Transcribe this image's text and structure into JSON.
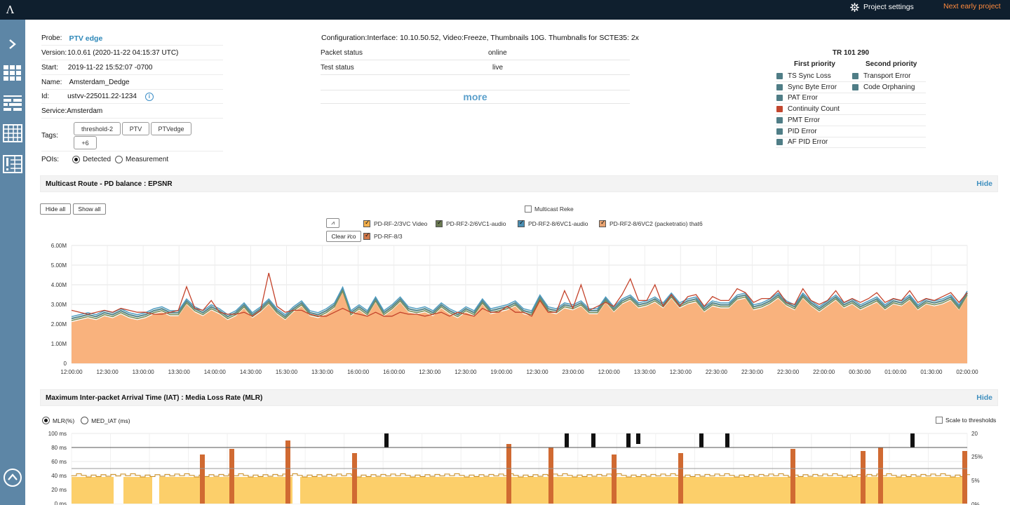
{
  "topbar": {
    "logo": "Λ",
    "project_settings": "Project settings",
    "next_early_project": "Next early project"
  },
  "sidebar": {
    "icons": [
      "chevron-right-icon",
      "grid-icon",
      "list-icon",
      "table-icon",
      "alert-list-icon",
      "collapse-up-icon"
    ]
  },
  "info": {
    "probe_label": "Probe:",
    "probe_value": "PTV edge",
    "version_label": "Version:",
    "version_value": "10.0.61 (2020-11-22 04:15:37 UTC)",
    "start_label": "Start:",
    "start_value": "2019-11-22 15:52:07 -0700",
    "name_label": "Name:",
    "name_value": "Amsterdam_Dedge",
    "id_label": "Id:",
    "id_value": "ustvv-225011.22-1234",
    "service_label": "Service:",
    "service_value": "Amsterdam",
    "tags_label": "Tags:",
    "tags": [
      "threshold-2",
      "PTV",
      "PTVedge",
      "+6"
    ],
    "pois_label": "POIs:",
    "pois_detected": "Detected",
    "pois_measurement": "Measurement"
  },
  "config": {
    "title": "Configuration:Interface: 10.10.50.52, Video:Freeze, Thumbnails 10G. Thumbnalls for SCTE35: 2x",
    "packet_status_label": "Packet status",
    "packet_status_value": "online",
    "test_status_label": "Test status",
    "test_status_value": "live",
    "more": "more"
  },
  "tr101290": {
    "title": "TR 101 290",
    "first_priority": "First priority",
    "second_priority": "Second priority",
    "first_items": [
      {
        "label": "TS Sync Loss",
        "color": "#4f7d86"
      },
      {
        "label": "Sync Byte Error",
        "color": "#4f7d86"
      },
      {
        "label": "PAT Error",
        "color": "#4f7d86"
      },
      {
        "label": "Continuity Count",
        "color": "#c2472f"
      },
      {
        "label": "PMT Error",
        "color": "#4f7d86"
      },
      {
        "label": "PID Error",
        "color": "#4f7d86"
      },
      {
        "label": "AF PID Error",
        "color": "#4f7d86"
      }
    ],
    "second_items": [
      {
        "label": "Transport Error",
        "color": "#4f7d86"
      },
      {
        "label": "Code Orphaning",
        "color": "#4f7d86"
      }
    ]
  },
  "section1": {
    "title": "Multicast Route - PD balance : EPSNR",
    "hide": "Hide",
    "hide_all": "Hide all",
    "show_all": "Show all",
    "multicast_reke": "Multicast Reke",
    "zoom_btn": "⩘",
    "clear_btn": "Clear i∕co",
    "legend": [
      {
        "name": "PD-RF-2/3VC Video",
        "color": "#f5b04c"
      },
      {
        "name": "PD-RF2-2/6VC1-audio",
        "color": "#6b7a52"
      },
      {
        "name": "PD-RF2-8/6VC1-audio",
        "color": "#4b8fb3"
      },
      {
        "name": "PD-RF2-8/6VC2 (packetratio) that6",
        "color": "#e8a371"
      },
      {
        "name": "PD-RF-8/3",
        "color": "#d2784a"
      }
    ]
  },
  "chart_data": [
    {
      "type": "area",
      "title": "Multicast Route - PD balance : EPSNR",
      "y_tick_labels": [
        "0",
        "1.00M",
        "2.00M",
        "3.00M",
        "4.00M",
        "5.00M",
        "6.00M"
      ],
      "ylim": [
        0,
        6000000
      ],
      "x_tick_labels": [
        "12:00:00",
        "12:30:00",
        "13:00:00",
        "13:30:00",
        "14:00:00",
        "14:30:00",
        "15:30:00",
        "13:30:00",
        "16:00:00",
        "16:00:00",
        "12:30:00",
        "12:30:00",
        "19:00:00",
        "12:30:00",
        "23:00:00",
        "12:00:00",
        "13:30:00",
        "12:30:00",
        "22:30:00",
        "22:30:00",
        "22:30:00",
        "22:00:00",
        "00:30:00",
        "01:00:00",
        "01:30:00",
        "02:00:00"
      ],
      "grid": true,
      "series": [
        {
          "name": "PD-RF-2/3VC Video",
          "values": [
            2.1,
            2.2,
            2.3,
            2.2,
            2.4,
            2.3,
            2.5,
            2.3,
            2.2,
            2.3,
            2.5,
            2.6,
            2.4,
            2.4,
            3.0,
            2.6,
            2.4,
            2.7,
            2.5,
            2.2,
            2.4,
            2.8,
            2.3,
            2.6,
            3.0,
            2.5,
            2.2,
            2.6,
            2.9,
            2.4,
            2.3,
            2.5,
            2.8,
            3.6,
            2.4,
            2.7,
            2.4,
            3.1,
            2.4,
            2.7,
            3.1,
            2.6,
            2.5,
            2.6,
            2.4,
            2.8,
            2.5,
            2.3,
            2.6,
            2.4,
            3.0,
            2.5,
            2.6,
            2.7,
            2.9,
            2.5,
            2.4,
            3.2,
            2.6,
            2.5,
            2.8,
            2.7,
            2.9,
            2.5,
            2.5,
            3.1,
            2.6,
            3.0,
            3.2,
            2.8,
            2.9,
            3.1,
            2.8,
            3.3,
            2.8,
            3.0,
            3.1,
            2.6,
            2.9,
            2.8,
            2.8,
            3.2,
            3.3,
            2.7,
            2.8,
            3.0,
            3.3,
            2.9,
            2.7,
            3.3,
            2.9,
            2.6,
            2.9,
            3.2,
            2.8,
            3.0,
            2.7,
            2.9,
            3.1,
            2.7,
            3.0,
            2.9,
            3.2,
            2.7,
            3.0,
            2.9,
            3.0,
            3.2,
            2.7,
            3.4
          ]
        },
        {
          "name": "PD-RF-8/3",
          "values": [
            2.7,
            2.6,
            2.5,
            2.6,
            2.7,
            2.6,
            2.8,
            2.7,
            2.6,
            2.6,
            2.5,
            2.5,
            2.6,
            2.7,
            3.9,
            2.8,
            2.7,
            3.2,
            2.6,
            2.5,
            2.5,
            2.6,
            2.4,
            2.7,
            4.6,
            2.9,
            2.6,
            2.7,
            2.7,
            2.5,
            2.4,
            2.4,
            2.6,
            2.8,
            2.6,
            2.5,
            2.4,
            2.6,
            2.4,
            2.4,
            2.6,
            2.5,
            2.5,
            2.4,
            2.5,
            2.6,
            2.4,
            2.6,
            2.5,
            2.4,
            2.8,
            2.6,
            2.6,
            2.9,
            2.6,
            2.6,
            2.4,
            3.2,
            2.6,
            2.6,
            3.7,
            2.8,
            4.0,
            2.7,
            2.9,
            3.1,
            2.9,
            3.5,
            4.3,
            3.2,
            3.2,
            4.0,
            2.9,
            3.5,
            2.9,
            3.4,
            3.5,
            2.9,
            3.4,
            3.2,
            3.2,
            3.8,
            3.6,
            3.1,
            3.3,
            3.3,
            3.7,
            3.1,
            3.0,
            3.8,
            3.2,
            3.0,
            3.2,
            3.7,
            3.1,
            3.3,
            3.1,
            3.3,
            3.6,
            3.1,
            3.3,
            3.2,
            3.7,
            3.1,
            3.3,
            3.2,
            3.4,
            3.6,
            3.1,
            3.6
          ]
        }
      ]
    },
    {
      "type": "bar",
      "title": "Maximum Inter-packet Arrival Time (IAT) : Media Loss Rate (MLR)",
      "y_tick_labels": [
        "0 ms",
        "20 ms",
        "40 ms",
        "60 ms",
        "80 ms",
        "100 ms"
      ],
      "ylim": [
        0,
        100
      ],
      "y2_tick_labels": [
        "20",
        "25%",
        "5%",
        "0%"
      ],
      "threshold": 80
    }
  ],
  "section2": {
    "title": "Maximum Inter-packet Arrival Time (IAT) : Media Loss Rate (MLR)",
    "hide": "Hide",
    "mlr": "MLR(%)",
    "med_iat": "MED_IAT (ms)",
    "scale": "Scale to thresholds"
  }
}
